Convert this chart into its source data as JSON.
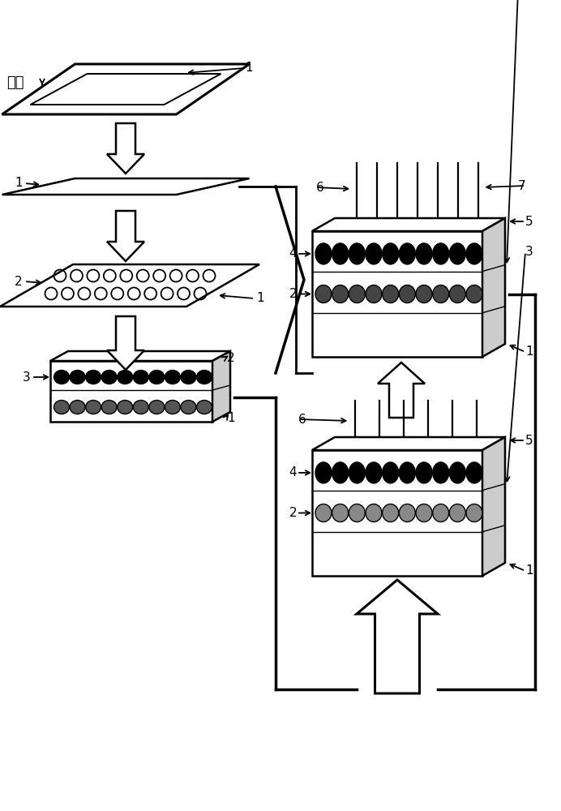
{
  "bg": "#ffffff",
  "lc": "#000000",
  "glass_label": "玻片",
  "fig_w": 6.92,
  "fig_h": 10.0,
  "dpi": 100
}
